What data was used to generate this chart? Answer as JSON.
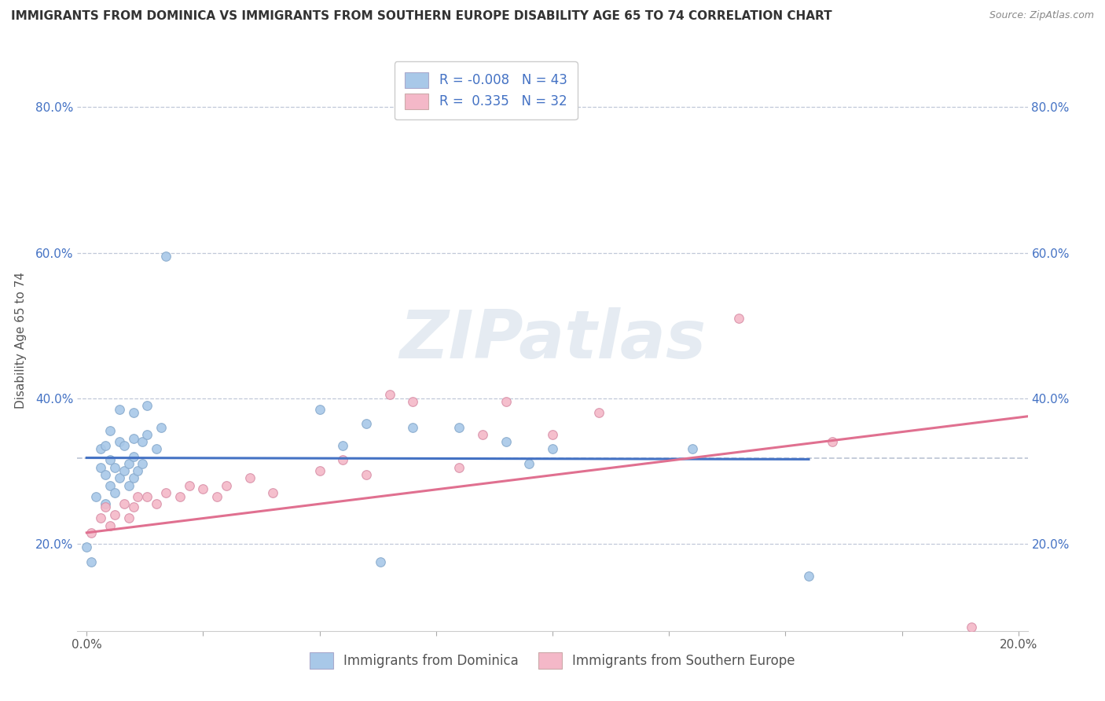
{
  "title": "IMMIGRANTS FROM DOMINICA VS IMMIGRANTS FROM SOUTHERN EUROPE DISABILITY AGE 65 TO 74 CORRELATION CHART",
  "source_text": "Source: ZipAtlas.com",
  "ylabel": "Disability Age 65 to 74",
  "xlim": [
    -0.002,
    0.202
  ],
  "ylim": [
    0.08,
    0.88
  ],
  "x_ticks": [
    0.0,
    0.025,
    0.05,
    0.075,
    0.1,
    0.125,
    0.15,
    0.175,
    0.2
  ],
  "x_tick_labels": [
    "0.0%",
    "",
    "",
    "",
    "",
    "",
    "",
    "",
    "20.0%"
  ],
  "y_ticks": [
    0.2,
    0.4,
    0.6,
    0.8
  ],
  "y_tick_labels": [
    "20.0%",
    "40.0%",
    "60.0%",
    "80.0%"
  ],
  "legend_blue_r": "-0.008",
  "legend_blue_n": "43",
  "legend_pink_r": "0.335",
  "legend_pink_n": "32",
  "blue_color": "#a8c8e8",
  "pink_color": "#f4b8c8",
  "blue_scatter_edge": "#88aacc",
  "pink_scatter_edge": "#d890a8",
  "blue_line_color": "#4472c4",
  "pink_line_color": "#e07090",
  "legend_text_color": "#4472c4",
  "watermark_text": "ZIPatlas",
  "blue_scatter_x": [
    0.0,
    0.001,
    0.002,
    0.003,
    0.003,
    0.004,
    0.004,
    0.004,
    0.005,
    0.005,
    0.005,
    0.006,
    0.006,
    0.007,
    0.007,
    0.007,
    0.008,
    0.008,
    0.009,
    0.009,
    0.01,
    0.01,
    0.01,
    0.01,
    0.011,
    0.012,
    0.012,
    0.013,
    0.013,
    0.015,
    0.016,
    0.017,
    0.05,
    0.055,
    0.06,
    0.063,
    0.07,
    0.08,
    0.09,
    0.095,
    0.1,
    0.13,
    0.155
  ],
  "blue_scatter_y": [
    0.195,
    0.175,
    0.265,
    0.305,
    0.33,
    0.255,
    0.295,
    0.335,
    0.28,
    0.315,
    0.355,
    0.27,
    0.305,
    0.29,
    0.34,
    0.385,
    0.3,
    0.335,
    0.28,
    0.31,
    0.29,
    0.32,
    0.345,
    0.38,
    0.3,
    0.31,
    0.34,
    0.35,
    0.39,
    0.33,
    0.36,
    0.595,
    0.385,
    0.335,
    0.365,
    0.175,
    0.36,
    0.36,
    0.34,
    0.31,
    0.33,
    0.33,
    0.155
  ],
  "pink_scatter_x": [
    0.001,
    0.003,
    0.004,
    0.005,
    0.006,
    0.008,
    0.009,
    0.01,
    0.011,
    0.013,
    0.015,
    0.017,
    0.02,
    0.022,
    0.025,
    0.028,
    0.03,
    0.035,
    0.04,
    0.05,
    0.055,
    0.06,
    0.065,
    0.07,
    0.08,
    0.085,
    0.09,
    0.1,
    0.11,
    0.14,
    0.16,
    0.19
  ],
  "pink_scatter_y": [
    0.215,
    0.235,
    0.25,
    0.225,
    0.24,
    0.255,
    0.235,
    0.25,
    0.265,
    0.265,
    0.255,
    0.27,
    0.265,
    0.28,
    0.275,
    0.265,
    0.28,
    0.29,
    0.27,
    0.3,
    0.315,
    0.295,
    0.405,
    0.395,
    0.305,
    0.35,
    0.395,
    0.35,
    0.38,
    0.51,
    0.34,
    0.085
  ],
  "blue_trend_x": [
    0.0,
    0.155
  ],
  "blue_trend_y": [
    0.318,
    0.316
  ],
  "pink_trend_x": [
    0.0,
    0.202
  ],
  "pink_trend_y": [
    0.215,
    0.375
  ],
  "hline_y": 0.318,
  "grid_color": "#c0c8d8",
  "background_color": "#ffffff",
  "title_fontsize": 11,
  "source_fontsize": 9,
  "tick_fontsize": 11,
  "ylabel_fontsize": 11,
  "legend_fontsize": 12
}
